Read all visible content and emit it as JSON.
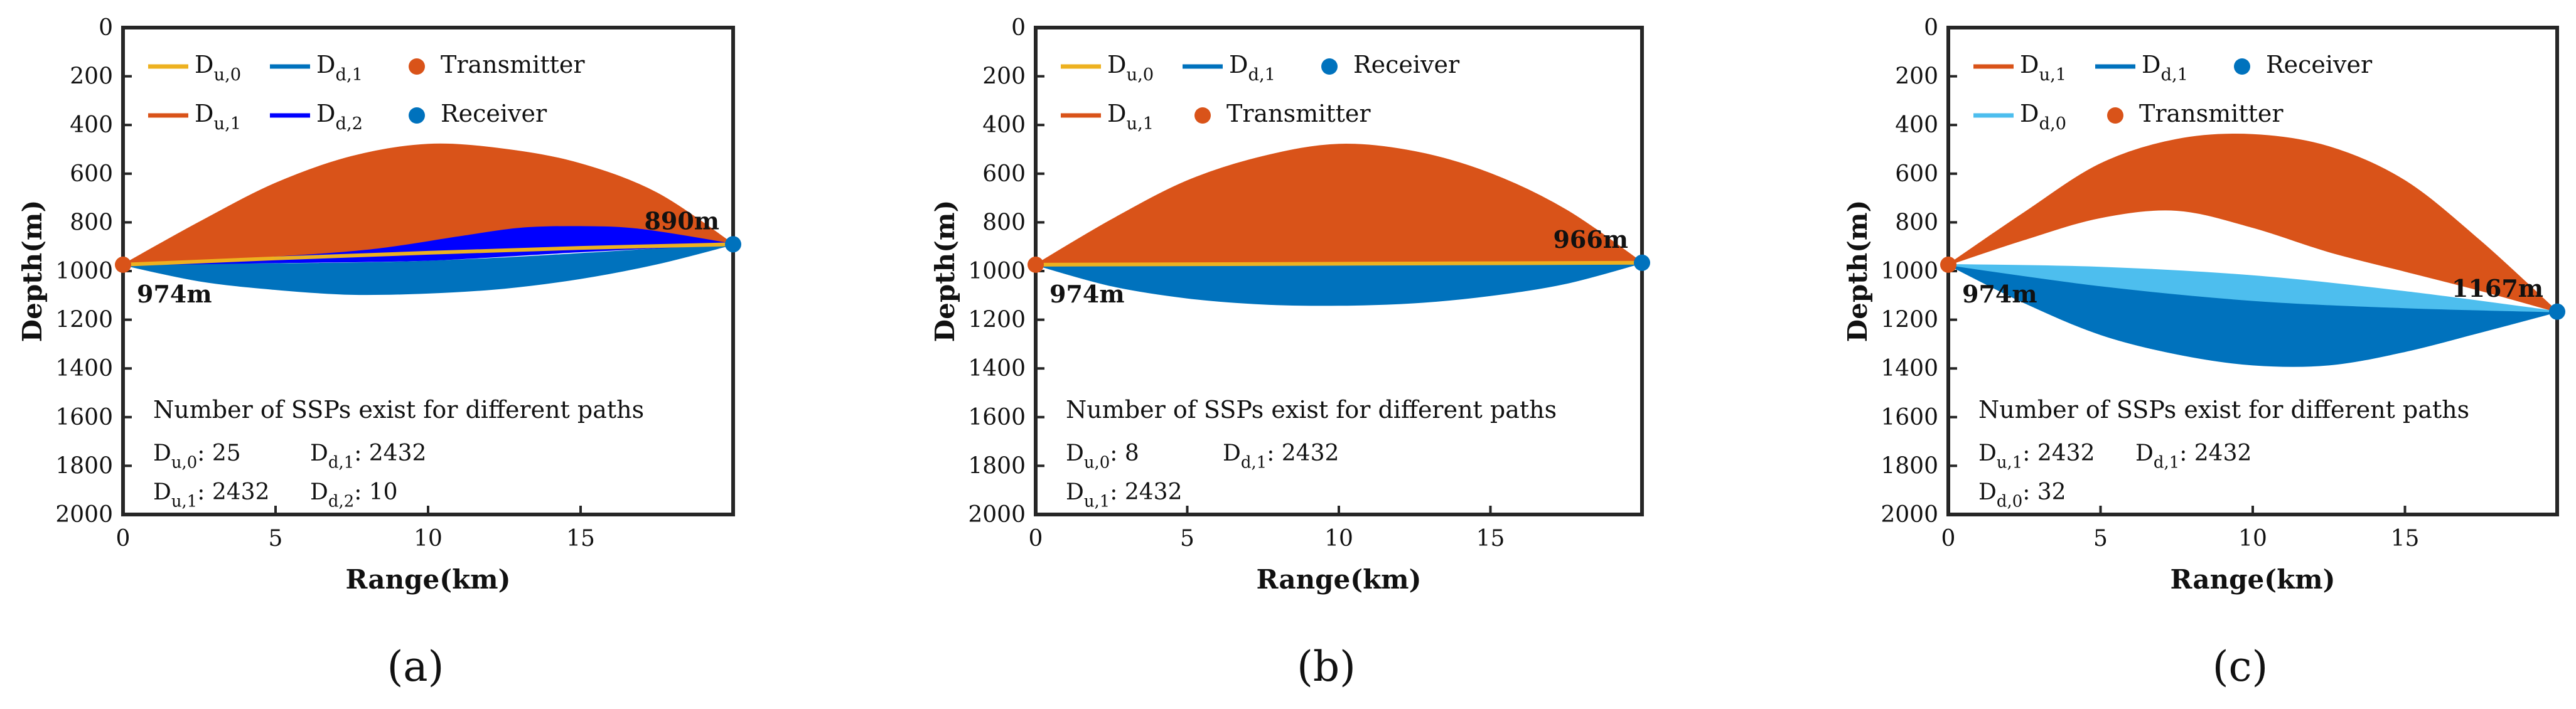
{
  "chart_data": [
    {
      "type": "area",
      "panel_label": "(a)",
      "xlabel": "Range(km)",
      "ylabel": "Depth(m)",
      "xlim": [
        0,
        20
      ],
      "ylim": [
        0,
        2000
      ],
      "y_reversed": true,
      "x_ticks": [
        0,
        5,
        10,
        15
      ],
      "y_ticks": [
        0,
        200,
        400,
        600,
        800,
        1000,
        1200,
        1400,
        1600,
        1800,
        2000
      ],
      "transmitter": {
        "range_km": 0,
        "depth_m": 974,
        "label": "974m"
      },
      "receiver": {
        "range_km": 20,
        "depth_m": 890,
        "label": "890m"
      },
      "regions": [
        {
          "id": "Du1",
          "legend": {
            "main": "D",
            "sub": "u,1"
          },
          "color": "#d95319",
          "upper": [
            [
              0,
              974
            ],
            [
              2.5,
              800
            ],
            [
              5,
              640
            ],
            [
              7.5,
              530
            ],
            [
              10,
              480
            ],
            [
              12.5,
              500
            ],
            [
              15,
              560
            ],
            [
              17.5,
              680
            ],
            [
              20,
              890
            ]
          ],
          "lower": [
            [
              0,
              974
            ],
            [
              5,
              940
            ],
            [
              10,
              915
            ],
            [
              15,
              900
            ],
            [
              20,
              890
            ]
          ]
        },
        {
          "id": "Dd1",
          "legend": {
            "main": "D",
            "sub": "d,1"
          },
          "color": "#0072bd",
          "upper": [
            [
              0,
              974
            ],
            [
              10,
              960
            ],
            [
              20,
              890
            ]
          ],
          "lower": [
            [
              0,
              974
            ],
            [
              2.5,
              1040
            ],
            [
              5,
              1075
            ],
            [
              7.5,
              1095
            ],
            [
              10,
              1090
            ],
            [
              12.5,
              1070
            ],
            [
              15,
              1030
            ],
            [
              17.5,
              970
            ],
            [
              20,
              890
            ]
          ]
        },
        {
          "id": "Dd2",
          "legend": {
            "main": "D",
            "sub": "d,2"
          },
          "color": "#0000ff",
          "upper": [
            [
              0,
              974
            ],
            [
              4,
              950
            ],
            [
              8,
              915
            ],
            [
              11,
              860
            ],
            [
              13,
              825
            ],
            [
              15,
              818
            ],
            [
              17,
              830
            ],
            [
              20,
              890
            ]
          ],
          "lower": [
            [
              0,
              974
            ],
            [
              5,
              965
            ],
            [
              10,
              955
            ],
            [
              15,
              920
            ],
            [
              20,
              890
            ]
          ]
        },
        {
          "id": "Du0",
          "legend": {
            "main": "D",
            "sub": "u,0"
          },
          "color": "#edb120",
          "line": [
            [
              0,
              974
            ],
            [
              5,
              948
            ],
            [
              10,
              925
            ],
            [
              15,
              905
            ],
            [
              20,
              890
            ]
          ]
        }
      ],
      "legend_rows": [
        [
          "Du0",
          "Dd1",
          "Transmitter"
        ],
        [
          "Du1",
          "Dd2",
          "Receiver"
        ]
      ],
      "legend_markers": {
        "Transmitter": {
          "label": "Transmitter",
          "color": "#d95319"
        },
        "Receiver": {
          "label": "Receiver",
          "color": "#0072bd"
        }
      },
      "info": {
        "title": "Number of SSPs exist for different paths",
        "entries": [
          {
            "main": "D",
            "sub": "u,0",
            "value": ": 25"
          },
          {
            "main": "D",
            "sub": "d,1",
            "value": ": 2432"
          },
          {
            "main": "D",
            "sub": "u,1",
            "value": ": 2432"
          },
          {
            "main": "D",
            "sub": "d,2",
            "value": ": 10"
          }
        ]
      }
    },
    {
      "type": "area",
      "panel_label": "(b)",
      "xlabel": "Range(km)",
      "ylabel": "Depth(m)",
      "xlim": [
        0,
        20
      ],
      "ylim": [
        0,
        2000
      ],
      "y_reversed": true,
      "x_ticks": [
        0,
        5,
        10,
        15
      ],
      "y_ticks": [
        0,
        200,
        400,
        600,
        800,
        1000,
        1200,
        1400,
        1600,
        1800,
        2000
      ],
      "transmitter": {
        "range_km": 0,
        "depth_m": 974,
        "label": "974m"
      },
      "receiver": {
        "range_km": 20,
        "depth_m": 966,
        "label": "966m"
      },
      "regions": [
        {
          "id": "Du1",
          "legend": {
            "main": "D",
            "sub": "u,1"
          },
          "color": "#d95319",
          "upper": [
            [
              0,
              974
            ],
            [
              2.5,
              790
            ],
            [
              5,
              630
            ],
            [
              7.5,
              530
            ],
            [
              10,
              480
            ],
            [
              12.5,
              510
            ],
            [
              15,
              600
            ],
            [
              17.5,
              750
            ],
            [
              20,
              966
            ]
          ],
          "lower": [
            [
              0,
              974
            ],
            [
              10,
              970
            ],
            [
              20,
              966
            ]
          ]
        },
        {
          "id": "Dd1",
          "legend": {
            "main": "D",
            "sub": "d,1"
          },
          "color": "#0072bd",
          "upper": [
            [
              0,
              974
            ],
            [
              10,
              972
            ],
            [
              20,
              966
            ]
          ],
          "lower": [
            [
              0,
              974
            ],
            [
              2.5,
              1060
            ],
            [
              5,
              1110
            ],
            [
              7.5,
              1135
            ],
            [
              10,
              1140
            ],
            [
              12.5,
              1130
            ],
            [
              15,
              1100
            ],
            [
              17.5,
              1050
            ],
            [
              20,
              966
            ]
          ]
        },
        {
          "id": "Du0",
          "legend": {
            "main": "D",
            "sub": "u,0"
          },
          "color": "#edb120",
          "line": [
            [
              0,
              974
            ],
            [
              10,
              970
            ],
            [
              20,
              966
            ]
          ]
        }
      ],
      "legend_rows": [
        [
          "Du0",
          "Dd1",
          "Receiver"
        ],
        [
          "Du1",
          "Transmitter"
        ]
      ],
      "legend_markers": {
        "Transmitter": {
          "label": "Transmitter",
          "color": "#d95319"
        },
        "Receiver": {
          "label": "Receiver",
          "color": "#0072bd"
        }
      },
      "info": {
        "title": "Number of SSPs exist for different paths",
        "entries": [
          {
            "main": "D",
            "sub": "u,0",
            "value": ": 8"
          },
          {
            "main": "D",
            "sub": "d,1",
            "value": ": 2432"
          },
          {
            "main": "D",
            "sub": "u,1",
            "value": ": 2432"
          }
        ]
      }
    },
    {
      "type": "area",
      "panel_label": "(c)",
      "xlabel": "Range(km)",
      "ylabel": "Depth(m)",
      "xlim": [
        0,
        20
      ],
      "ylim": [
        0,
        2000
      ],
      "y_reversed": true,
      "x_ticks": [
        0,
        5,
        10,
        15
      ],
      "y_ticks": [
        0,
        200,
        400,
        600,
        800,
        1000,
        1200,
        1400,
        1600,
        1800,
        2000
      ],
      "transmitter": {
        "range_km": 0,
        "depth_m": 974,
        "label": "974m"
      },
      "receiver": {
        "range_km": 20,
        "depth_m": 1167,
        "label": "1167m"
      },
      "regions": [
        {
          "id": "Du1",
          "legend": {
            "main": "D",
            "sub": "u,1"
          },
          "color": "#d95319",
          "upper": [
            [
              0,
              974
            ],
            [
              2.5,
              760
            ],
            [
              5,
              560
            ],
            [
              7.5,
              460
            ],
            [
              10,
              440
            ],
            [
              12.5,
              490
            ],
            [
              15,
              630
            ],
            [
              17.5,
              880
            ],
            [
              20,
              1167
            ]
          ],
          "lower": [
            [
              0,
              974
            ],
            [
              2.5,
              870
            ],
            [
              5,
              780
            ],
            [
              7.5,
              750
            ],
            [
              10,
              820
            ],
            [
              12.5,
              920
            ],
            [
              15,
              1000
            ],
            [
              17.5,
              1080
            ],
            [
              20,
              1167
            ]
          ]
        },
        {
          "id": "Dd1",
          "legend": {
            "main": "D",
            "sub": "d,1"
          },
          "color": "#0072bd",
          "upper": [
            [
              0,
              974
            ],
            [
              5,
              1060
            ],
            [
              10,
              1120
            ],
            [
              15,
              1150
            ],
            [
              20,
              1167
            ]
          ],
          "lower": [
            [
              0,
              974
            ],
            [
              2.5,
              1130
            ],
            [
              5,
              1260
            ],
            [
              7.5,
              1340
            ],
            [
              10,
              1385
            ],
            [
              12.5,
              1385
            ],
            [
              15,
              1330
            ],
            [
              17.5,
              1250
            ],
            [
              20,
              1167
            ]
          ]
        },
        {
          "id": "Dd0",
          "legend": {
            "main": "D",
            "sub": "d,0"
          },
          "color": "#4dbeee",
          "upper": [
            [
              0,
              974
            ],
            [
              5,
              985
            ],
            [
              10,
              1020
            ],
            [
              15,
              1085
            ],
            [
              20,
              1167
            ]
          ],
          "lower": [
            [
              0,
              974
            ],
            [
              5,
              1060
            ],
            [
              10,
              1120
            ],
            [
              15,
              1150
            ],
            [
              20,
              1167
            ]
          ]
        }
      ],
      "legend_rows": [
        [
          "Du1",
          "Dd1",
          "Receiver"
        ],
        [
          "Dd0",
          "Transmitter"
        ]
      ],
      "legend_markers": {
        "Transmitter": {
          "label": "Transmitter",
          "color": "#d95319"
        },
        "Receiver": {
          "label": "Receiver",
          "color": "#0072bd"
        }
      },
      "info": {
        "title": "Number of SSPs exist for different paths",
        "entries": [
          {
            "main": "D",
            "sub": "u,1",
            "value": ": 2432"
          },
          {
            "main": "D",
            "sub": "d,1",
            "value": ": 2432"
          },
          {
            "main": "D",
            "sub": "d,0",
            "value": ": 32"
          }
        ]
      }
    }
  ]
}
